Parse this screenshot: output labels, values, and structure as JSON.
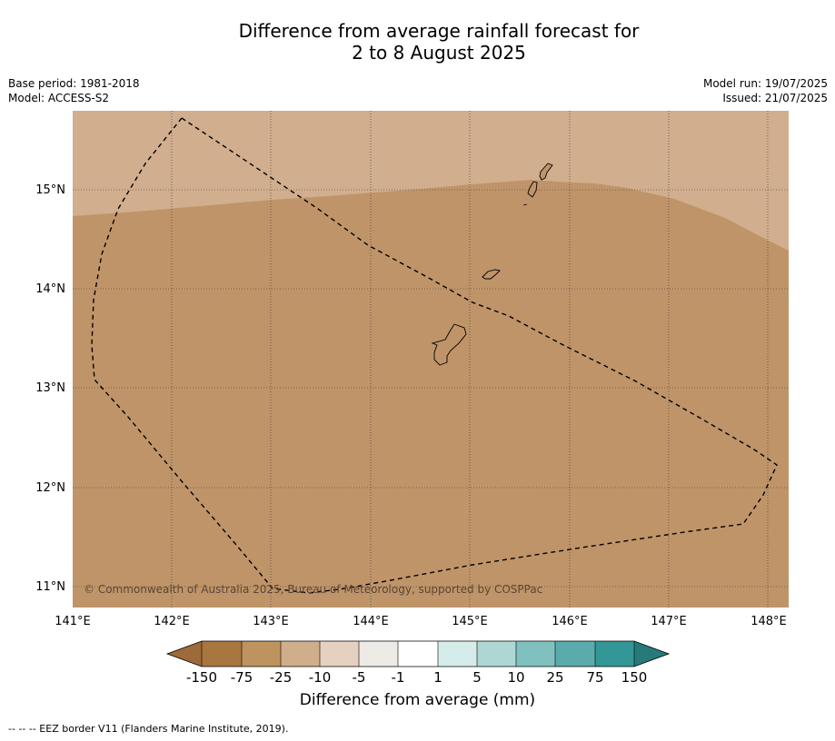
{
  "title": {
    "line1": "Difference from average rainfall forecast for",
    "line2": "2 to 8 August 2025"
  },
  "meta": {
    "base_period": "Base period: 1981-2018",
    "model": "Model: ACCESS-S2",
    "model_run": "Model run: 19/07/2025",
    "issued": "Issued: 21/07/2025"
  },
  "map": {
    "lat_labels": [
      "15°N",
      "14°N",
      "13°N",
      "12°N",
      "11°N"
    ],
    "lon_labels": [
      "141°E",
      "142°E",
      "143°E",
      "144°E",
      "145°E",
      "146°E",
      "147°E",
      "148°E"
    ],
    "copyright": "© Commonwealth of Australia 2025, Bureau of Meteorology, supported by COSPPac"
  },
  "colorbar": {
    "ticks": [
      "-150",
      "-75",
      "-25",
      "-10",
      "-5",
      "-1",
      "1",
      "5",
      "10",
      "25",
      "75",
      "150"
    ],
    "colors": [
      "#9d6a3a",
      "#a8773f",
      "#be935f",
      "#d0ae8b",
      "#e6d0bf",
      "#eeeae6",
      "#ffffff",
      "#d5ecea",
      "#aed7d4",
      "#80c1c0",
      "#5aabac",
      "#329796",
      "#267a79"
    ],
    "title": "Difference from average (mm)"
  },
  "footnote": "--  --  -- EEZ border V11 (Flanders Marine Institute, 2019)."
}
